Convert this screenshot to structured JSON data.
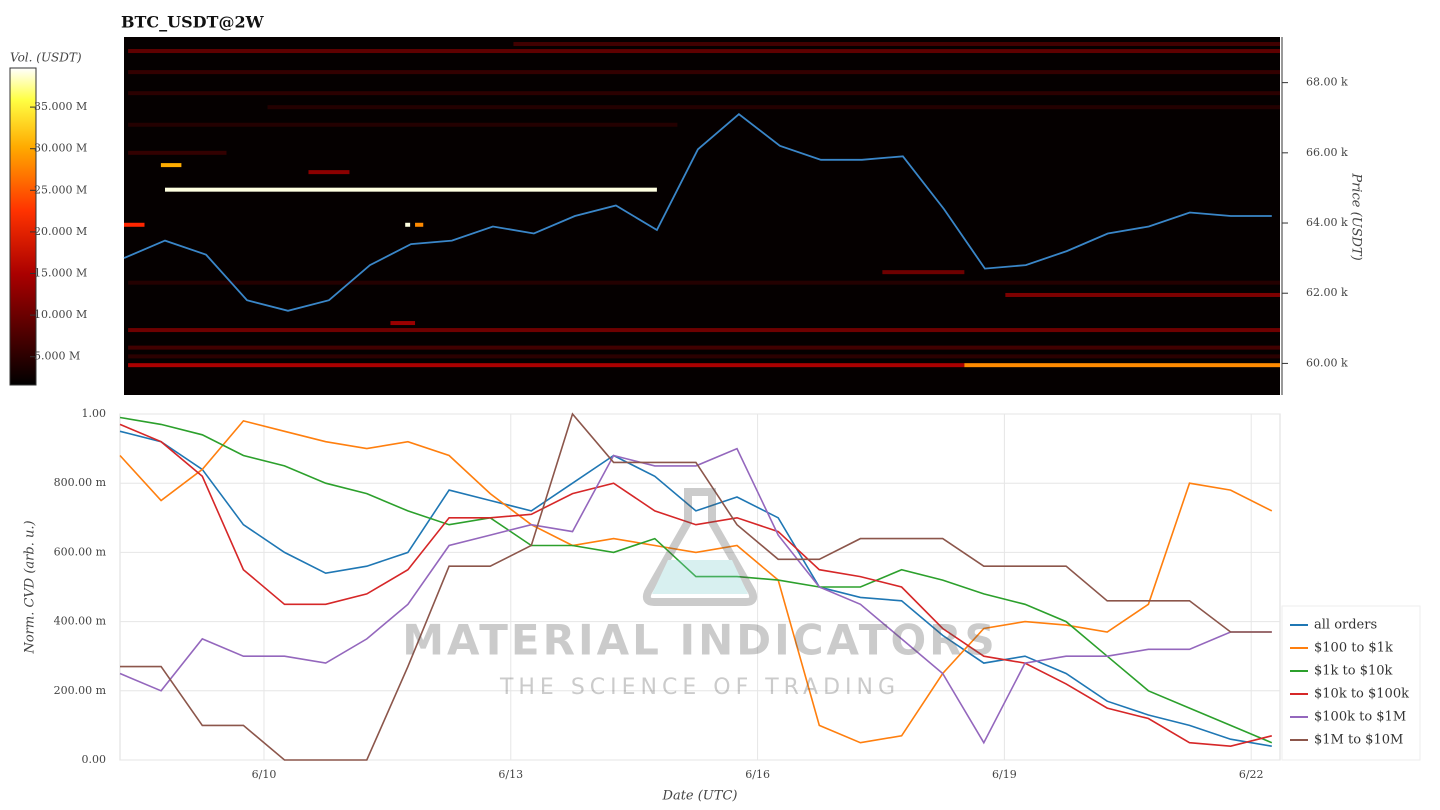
{
  "chart_data": [
    {
      "type": "heatmap",
      "title": "BTC_USDT@2W",
      "colorbar_label": "Vol. (USDT)",
      "y_label": "Price (USDT)",
      "colormap": "hot",
      "xlim": [
        8.25,
        22.35
      ],
      "ylim": [
        59100,
        69300
      ],
      "yticks": [
        {
          "value": 60000,
          "label": "60.00 k"
        },
        {
          "value": 62000,
          "label": "62.00 k"
        },
        {
          "value": 64000,
          "label": "64.00 k"
        },
        {
          "value": 66000,
          "label": "66.00 k"
        },
        {
          "value": 68000,
          "label": "68.00 k"
        }
      ],
      "clim": [
        1600000,
        39700000
      ],
      "cticks": [
        {
          "value": 5000000,
          "label": "5.000 M"
        },
        {
          "value": 10000000,
          "label": "10.000 M"
        },
        {
          "value": 15000000,
          "label": "15.000 M"
        },
        {
          "value": 20000000,
          "label": "20.000 M"
        },
        {
          "value": 25000000,
          "label": "25.000 M"
        },
        {
          "value": 30000000,
          "label": "30.000 M"
        },
        {
          "value": 35000000,
          "label": "35.000 M"
        }
      ],
      "levels": [
        {
          "price": 59950,
          "start": 8.3,
          "end": 18.5,
          "volume": 13000000
        },
        {
          "price": 59950,
          "start": 18.5,
          "end": 22.35,
          "volume": 27000000
        },
        {
          "price": 64950,
          "start": 8.75,
          "end": 14.75,
          "volume": 39000000
        },
        {
          "price": 65650,
          "start": 8.7,
          "end": 8.95,
          "volume": 29000000
        },
        {
          "price": 60950,
          "start": 8.3,
          "end": 22.35,
          "volume": 9000000
        },
        {
          "price": 60450,
          "start": 8.3,
          "end": 22.35,
          "volume": 6000000
        },
        {
          "price": 60200,
          "start": 8.3,
          "end": 22.35,
          "volume": 4500000
        },
        {
          "price": 61950,
          "start": 19.0,
          "end": 22.35,
          "volume": 10000000
        },
        {
          "price": 62600,
          "start": 17.5,
          "end": 18.5,
          "volume": 9000000
        },
        {
          "price": 62300,
          "start": 8.3,
          "end": 22.35,
          "volume": 4000000
        },
        {
          "price": 63950,
          "start": 8.25,
          "end": 8.5,
          "volume": 21000000
        },
        {
          "price": 63950,
          "start": 11.68,
          "end": 11.74,
          "volume": 39000000
        },
        {
          "price": 63950,
          "start": 11.8,
          "end": 11.9,
          "volume": 27000000
        },
        {
          "price": 61150,
          "start": 11.5,
          "end": 11.8,
          "volume": 12000000
        },
        {
          "price": 65450,
          "start": 10.5,
          "end": 11.0,
          "volume": 11000000
        },
        {
          "price": 68900,
          "start": 8.3,
          "end": 22.35,
          "volume": 8000000
        },
        {
          "price": 68300,
          "start": 8.3,
          "end": 22.35,
          "volume": 5000000
        },
        {
          "price": 67700,
          "start": 8.3,
          "end": 22.35,
          "volume": 4500000
        },
        {
          "price": 67300,
          "start": 10.0,
          "end": 22.35,
          "volume": 4000000
        },
        {
          "price": 66800,
          "start": 8.3,
          "end": 15.0,
          "volume": 4000000
        },
        {
          "price": 66000,
          "start": 8.3,
          "end": 9.5,
          "volume": 5000000
        },
        {
          "price": 69100,
          "start": 13.0,
          "end": 22.35,
          "volume": 6000000
        }
      ],
      "series": [
        {
          "color": "#3a86c8",
          "x": [
            8.25,
            8.75,
            9.25,
            9.75,
            10.25,
            10.75,
            11.25,
            11.75,
            12.25,
            12.75,
            13.25,
            13.75,
            14.25,
            14.75,
            15.25,
            15.75,
            16.25,
            16.75,
            17.25,
            17.75,
            18.25,
            18.75,
            19.25,
            19.75,
            20.25,
            20.75,
            21.25,
            21.75,
            22.25
          ],
          "values": [
            63000,
            63500,
            63100,
            61800,
            61500,
            61800,
            62800,
            63400,
            63500,
            63900,
            63700,
            64200,
            64500,
            63800,
            66100,
            67100,
            66200,
            65800,
            65800,
            65900,
            64400,
            62700,
            62800,
            63200,
            63700,
            63900,
            64300,
            64200,
            64200
          ]
        }
      ]
    },
    {
      "type": "line",
      "x_label": "Date (UTC)",
      "y_label": "Norm. CVD (arb. u.)",
      "grid": true,
      "legend": "right",
      "xlim": [
        8.25,
        22.35
      ],
      "ylim": [
        0,
        1
      ],
      "xticks": [
        {
          "value": 10,
          "label": "6/10"
        },
        {
          "value": 13,
          "label": "6/13"
        },
        {
          "value": 16,
          "label": "6/16"
        },
        {
          "value": 19,
          "label": "6/19"
        },
        {
          "value": 22,
          "label": "6/22"
        }
      ],
      "yticks": [
        {
          "value": 0,
          "label": "0.00"
        },
        {
          "value": 0.2,
          "label": "200.00 m"
        },
        {
          "value": 0.4,
          "label": "400.00 m"
        },
        {
          "value": 0.6,
          "label": "600.00 m"
        },
        {
          "value": 0.8,
          "label": "800.00 m"
        },
        {
          "value": 1,
          "label": "1.00"
        }
      ],
      "x": [
        8.25,
        8.75,
        9.25,
        9.75,
        10.25,
        10.75,
        11.25,
        11.75,
        12.25,
        12.75,
        13.25,
        13.75,
        14.25,
        14.75,
        15.25,
        15.75,
        16.25,
        16.75,
        17.25,
        17.75,
        18.25,
        18.75,
        19.25,
        19.75,
        20.25,
        20.75,
        21.25,
        21.75,
        22.25
      ],
      "series": [
        {
          "name": "all orders",
          "color": "#1f77b4",
          "values": [
            0.95,
            0.92,
            0.84,
            0.68,
            0.6,
            0.54,
            0.56,
            0.6,
            0.78,
            0.75,
            0.72,
            0.8,
            0.88,
            0.82,
            0.72,
            0.76,
            0.7,
            0.5,
            0.47,
            0.46,
            0.36,
            0.28,
            0.3,
            0.25,
            0.17,
            0.13,
            0.1,
            0.06,
            0.04
          ]
        },
        {
          "name": "$100 to $1k",
          "color": "#ff7f0e",
          "values": [
            0.88,
            0.75,
            0.84,
            0.98,
            0.95,
            0.92,
            0.9,
            0.92,
            0.88,
            0.77,
            0.68,
            0.62,
            0.64,
            0.62,
            0.6,
            0.62,
            0.52,
            0.1,
            0.05,
            0.07,
            0.25,
            0.38,
            0.4,
            0.39,
            0.37,
            0.45,
            0.8,
            0.78,
            0.72
          ]
        },
        {
          "name": "$1k to $10k",
          "color": "#2ca02c",
          "values": [
            0.99,
            0.97,
            0.94,
            0.88,
            0.85,
            0.8,
            0.77,
            0.72,
            0.68,
            0.7,
            0.62,
            0.62,
            0.6,
            0.64,
            0.53,
            0.53,
            0.52,
            0.5,
            0.5,
            0.55,
            0.52,
            0.48,
            0.45,
            0.4,
            0.3,
            0.2,
            0.15,
            0.1,
            0.05
          ]
        },
        {
          "name": "$10k to $100k",
          "color": "#d62728",
          "values": [
            0.97,
            0.92,
            0.82,
            0.55,
            0.45,
            0.45,
            0.48,
            0.55,
            0.7,
            0.7,
            0.71,
            0.77,
            0.8,
            0.72,
            0.68,
            0.7,
            0.66,
            0.55,
            0.53,
            0.5,
            0.38,
            0.3,
            0.28,
            0.22,
            0.15,
            0.12,
            0.05,
            0.04,
            0.07
          ]
        },
        {
          "name": "$100k to $1M",
          "color": "#9467bd",
          "values": [
            0.25,
            0.2,
            0.35,
            0.3,
            0.3,
            0.28,
            0.35,
            0.45,
            0.62,
            0.65,
            0.68,
            0.66,
            0.88,
            0.85,
            0.85,
            0.9,
            0.65,
            0.5,
            0.45,
            0.35,
            0.25,
            0.05,
            0.28,
            0.3,
            0.3,
            0.32,
            0.32,
            0.37,
            0.37
          ]
        },
        {
          "name": "$1M to $10M",
          "color": "#8c564b",
          "values": [
            0.27,
            0.27,
            0.1,
            0.1,
            0,
            0,
            0,
            0.27,
            0.56,
            0.56,
            0.62,
            1,
            0.86,
            0.86,
            0.86,
            0.68,
            0.58,
            0.58,
            0.64,
            0.64,
            0.64,
            0.56,
            0.56,
            0.56,
            0.46,
            0.46,
            0.46,
            0.37,
            0.37
          ]
        }
      ]
    }
  ],
  "watermark": {
    "title": "MATERIAL INDICATORS",
    "subtitle": "THE SCIENCE OF TRADING"
  }
}
